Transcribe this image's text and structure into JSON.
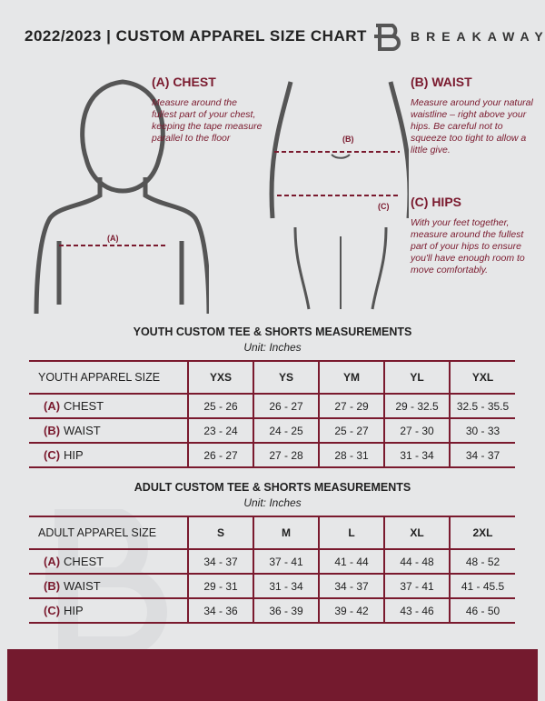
{
  "header": {
    "title": "2022/2023 | CUSTOM APPAREL SIZE CHART",
    "brand": "BREAKAWAY"
  },
  "chest": {
    "heading": "(A) CHEST",
    "desc": "Measure around the fullest part of your chest, keeping the tape measure parallel to the floor",
    "marker": "(A)"
  },
  "waist": {
    "heading": "(B) WAIST",
    "desc": "Measure around your natural waistline – right above your hips. Be careful not to squeeze too tight to allow a little give.",
    "marker": "(B)"
  },
  "hips": {
    "heading": "(C) HIPS",
    "desc": "With your feet together, measure around the fullest part of your hips to ensure you'll have enough room to move comfortably.",
    "marker": "(C)"
  },
  "youth": {
    "title": "YOUTH CUSTOM TEE & SHORTS MEASUREMENTS",
    "unit": "Unit: Inches",
    "label": "YOUTH APPAREL SIZE",
    "sizes": [
      "YXS",
      "YS",
      "YM",
      "YL",
      "YXL"
    ],
    "rows": [
      {
        "code": "(A)",
        "name": "CHEST",
        "values": [
          "25 - 26",
          "26 - 27",
          "27 - 29",
          "29 - 32.5",
          "32.5 - 35.5"
        ]
      },
      {
        "code": "(B)",
        "name": "WAIST",
        "values": [
          "23 - 24",
          "24 - 25",
          "25 - 27",
          "27 - 30",
          "30 - 33"
        ]
      },
      {
        "code": "(C)",
        "name": "HIP",
        "values": [
          "26 - 27",
          "27 - 28",
          "28 - 31",
          "31 - 34",
          "34 - 37"
        ]
      }
    ]
  },
  "adult": {
    "title": "ADULT CUSTOM TEE & SHORTS MEASUREMENTS",
    "unit": "Unit: Inches",
    "label": "ADULT APPAREL SIZE",
    "sizes": [
      "S",
      "M",
      "L",
      "XL",
      "2XL"
    ],
    "rows": [
      {
        "code": "(A)",
        "name": "CHEST",
        "values": [
          "34 - 37",
          "37 - 41",
          "41 - 44",
          "44 - 48",
          "48 - 52"
        ]
      },
      {
        "code": "(B)",
        "name": "WAIST",
        "values": [
          "29 - 31",
          "31 - 34",
          "34 - 37",
          "37 - 41",
          "41 - 45.5"
        ]
      },
      {
        "code": "(C)",
        "name": "HIP",
        "values": [
          "34 - 36",
          "36 - 39",
          "39 - 42",
          "43 - 46",
          "46 - 50"
        ]
      }
    ]
  },
  "colors": {
    "accent": "#7a1a2e",
    "background": "#e6e7e8"
  }
}
